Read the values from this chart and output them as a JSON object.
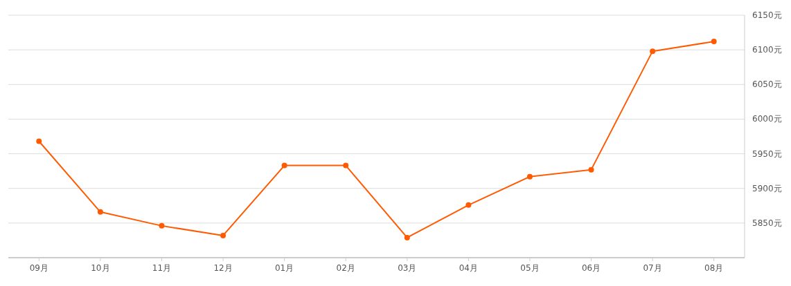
{
  "chart_data": {
    "type": "line",
    "categories": [
      "09月",
      "10月",
      "11月",
      "12月",
      "01月",
      "02月",
      "03月",
      "04月",
      "05月",
      "06月",
      "07月",
      "08月"
    ],
    "series": [
      {
        "color": "#ff5a00",
        "values": [
          5968,
          5866,
          5846,
          5832,
          5933,
          5933,
          5829,
          5876,
          5917,
          5927,
          6098,
          6112
        ]
      }
    ],
    "ylim": [
      5800,
      6150
    ],
    "yticks": [
      {
        "value": 5850,
        "label": "5850元"
      },
      {
        "value": 5900,
        "label": "5900元"
      },
      {
        "value": 5950,
        "label": "5950元"
      },
      {
        "value": 6000,
        "label": "6000元"
      },
      {
        "value": 6050,
        "label": "6050元"
      },
      {
        "value": 6100,
        "label": "6100元"
      },
      {
        "value": 6150,
        "label": "6150元"
      }
    ],
    "grid": "y",
    "marker": "circle",
    "line_style": "solid"
  }
}
